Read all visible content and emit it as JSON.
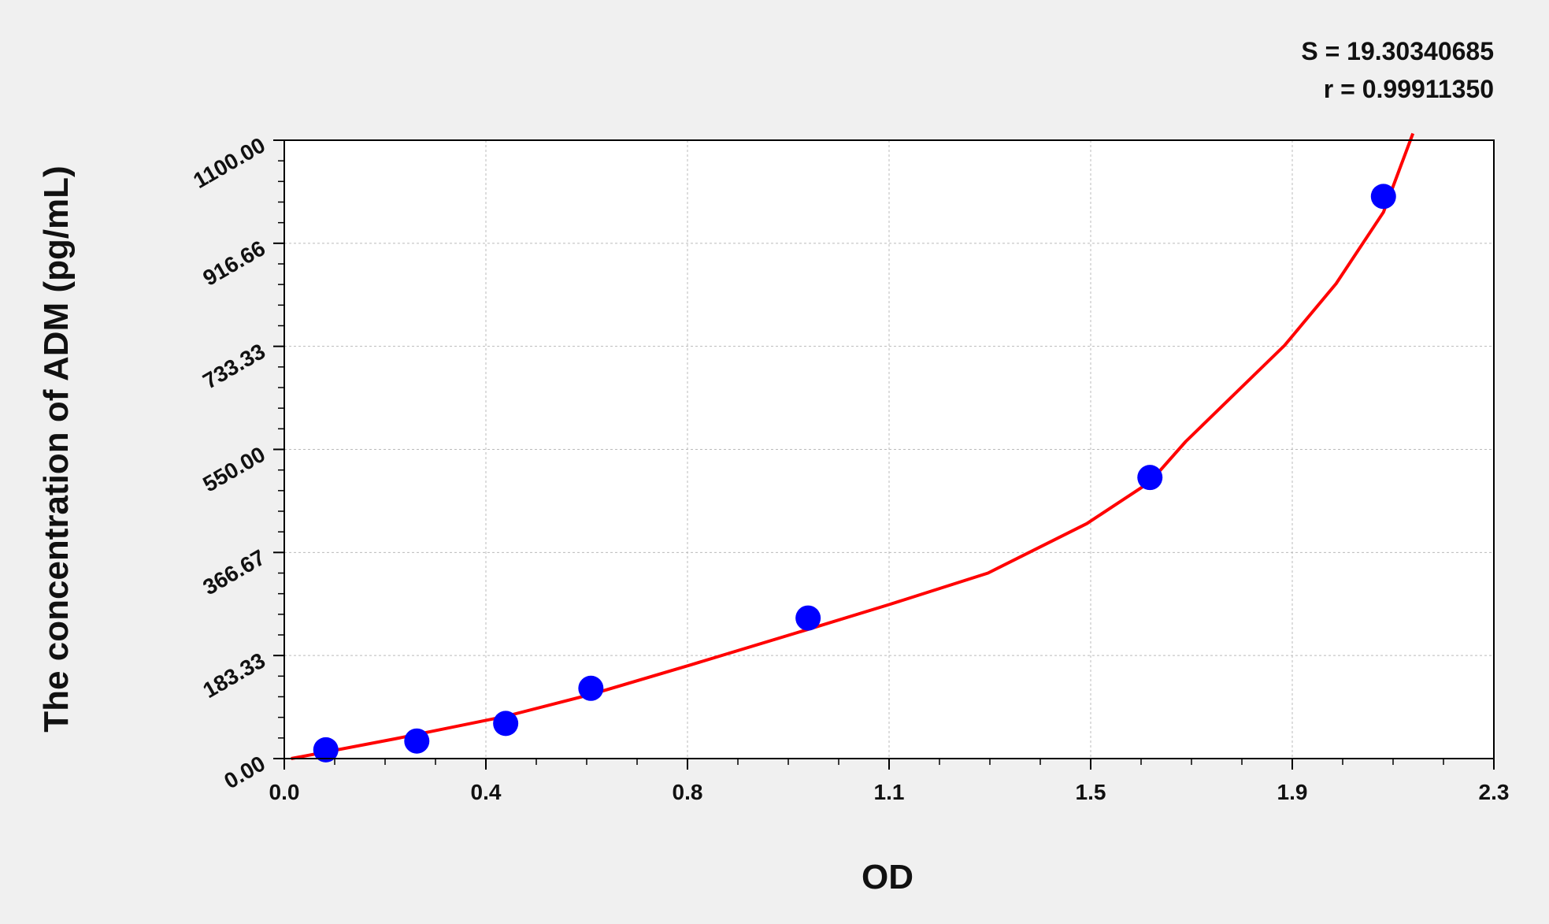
{
  "chart_data": {
    "type": "scatter",
    "title": "",
    "xlabel": "OD",
    "ylabel": "The concentration of ADM (pg/mL)",
    "xlim": [
      0,
      2.3
    ],
    "ylim": [
      0,
      1100
    ],
    "x_tick_labels": [
      "0.0",
      "0.4",
      "0.8",
      "1.1",
      "1.5",
      "1.9",
      "2.3"
    ],
    "y_tick_labels": [
      "0.00",
      "183.33",
      "366.67",
      "550.00",
      "733.33",
      "916.66",
      "1100.00"
    ],
    "grid": true,
    "annotations": [
      "S = 19.30340685",
      "r = 0.99911350"
    ],
    "colors": {
      "points": "#0000ff",
      "curve": "#ff0000",
      "background": "#f0f0f0",
      "plot_area": "#ffffff"
    },
    "series": [
      {
        "type": "scatter",
        "x": [
          0.079,
          0.252,
          0.421,
          0.583,
          0.996,
          1.646,
          2.09
        ],
        "y": [
          15.6,
          31.25,
          62.5,
          125,
          250,
          500,
          1000
        ]
      },
      {
        "type": "line",
        "x": [
          0.013,
          0.21,
          0.42,
          0.583,
          0.774,
          0.996,
          1.15,
          1.338,
          1.526,
          1.646,
          1.714,
          1.902,
          2.0,
          2.09,
          2.146
        ],
        "y": [
          0,
          35,
          75,
          114,
          167,
          230,
          274,
          330,
          418,
          492,
          564,
          735,
          845,
          972,
          1112
        ]
      }
    ]
  }
}
